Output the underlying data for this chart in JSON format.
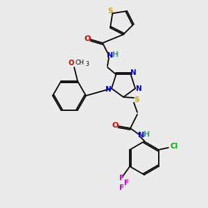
{
  "background_color": "#ebebeb",
  "atom_colors": {
    "C": "#000000",
    "H": "#4a9a8a",
    "N": "#0000cc",
    "O": "#cc0000",
    "S": "#ccaa00",
    "F": "#cc00cc",
    "Cl": "#00aa00"
  },
  "bond_color": "#000000",
  "figsize": [
    3.0,
    3.0
  ],
  "dpi": 100,
  "lw": 1.3
}
